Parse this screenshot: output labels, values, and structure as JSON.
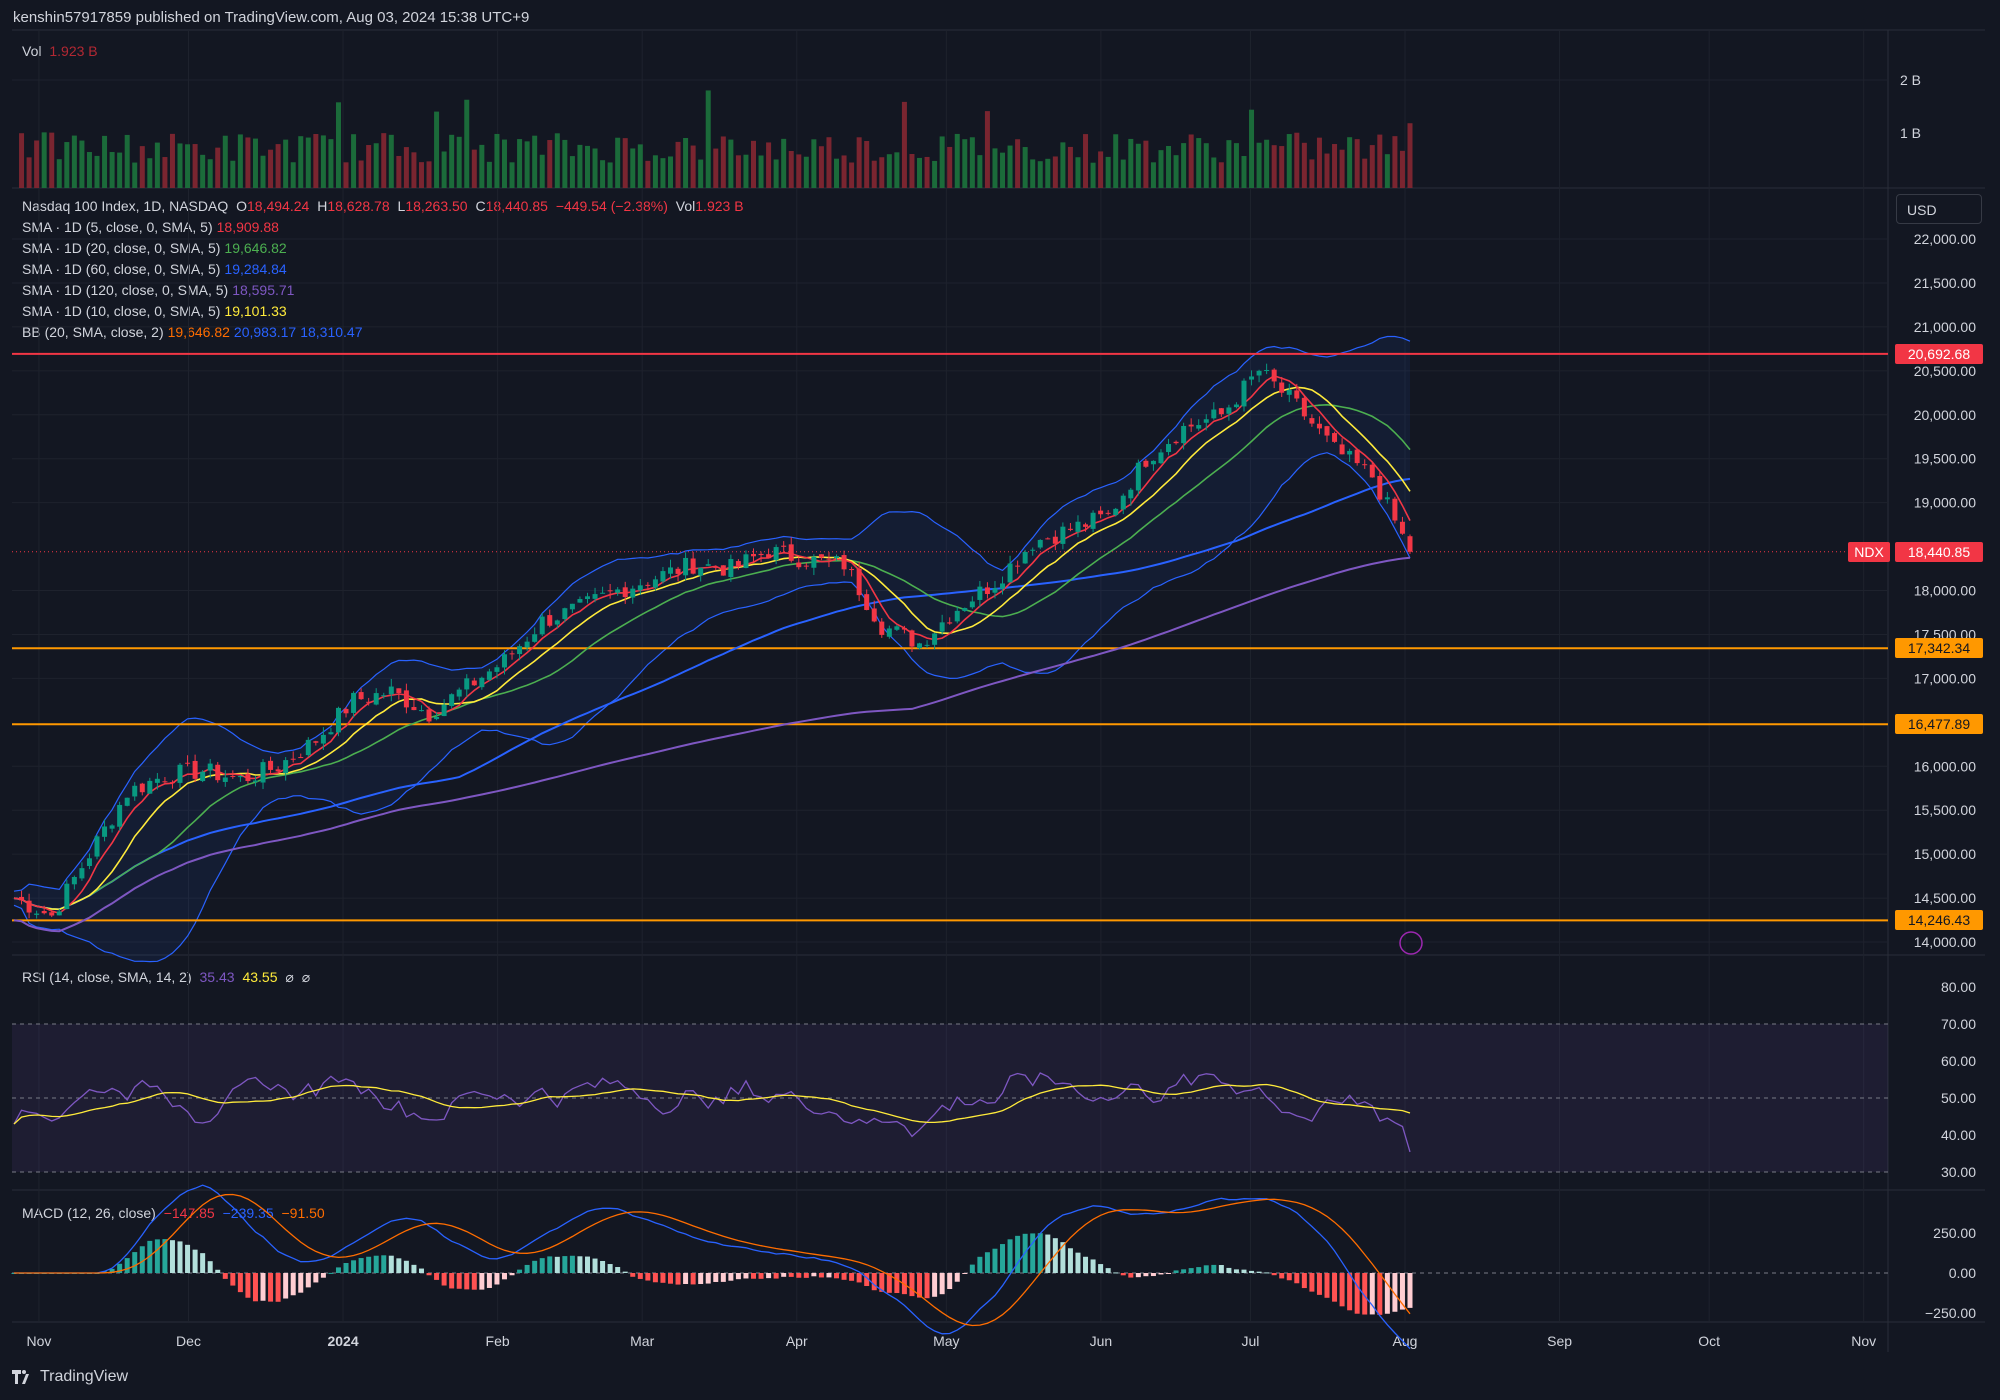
{
  "header": {
    "text": "kenshin57917859 published on TradingView.com, Aug 03, 2024 15:38 UTC+9"
  },
  "currency": "USD",
  "symbol_tag": "NDX",
  "volume_pane": {
    "label": "Vol",
    "value": "1.923 B",
    "axis": [
      "2 B",
      "1 B"
    ]
  },
  "main_legend": {
    "title": "Nasdaq 100 Index, 1D, NASDAQ",
    "o_label": "O",
    "o": "18,494.24",
    "h_label": "H",
    "h": "18,628.78",
    "l_label": "L",
    "l": "18,263.50",
    "c_label": "C",
    "c": "18,440.85",
    "change": "−449.54 (−2.38%)",
    "vol_label": "Vol",
    "vol": "1.923 B",
    "sma5_label": "SMA · 1D (5, close, 0, SMA, 5)",
    "sma5": "18,909.88",
    "sma20_label": "SMA · 1D (20, close, 0, SMA, 5)",
    "sma20": "19,646.82",
    "sma60_label": "SMA · 1D (60, close, 0, SMA, 5)",
    "sma60": "19,284.84",
    "sma120_label": "SMA · 1D (120, close, 0, SMA, 5)",
    "sma120": "18,595.71",
    "sma10_label": "SMA · 1D (10, close, 0, SMA, 5)",
    "sma10": "19,101.33",
    "bb_label": "BB (20, SMA, close, 2)",
    "bb_mid": "19,646.82",
    "bb_up": "20,983.17",
    "bb_low": "18,310.47"
  },
  "price_axis": [
    "22,000.00",
    "21,500.00",
    "21,000.00",
    "20,500.00",
    "20,000.00",
    "19,500.00",
    "19,000.00",
    "18,000.00",
    "17,500.00",
    "17,000.00",
    "16,000.00",
    "15,500.00",
    "15,000.00",
    "14,500.00",
    "14,000.00"
  ],
  "horizontal_lines": [
    {
      "label": "20,692.68",
      "value": 20692.68,
      "color": "#f23645"
    },
    {
      "label": "17,342.34",
      "value": 17342.34,
      "color": "#ff9800"
    },
    {
      "label": "16,477.89",
      "value": 16477.89,
      "color": "#ff9800"
    },
    {
      "label": "14,246.43",
      "value": 14246.43,
      "color": "#ff9800"
    }
  ],
  "last_price": {
    "label": "18,440.85",
    "value": 18440.85
  },
  "rsi_pane": {
    "label": "RSI (14, close, SMA, 14, 2)",
    "v1": "35.43",
    "v2": "43.55",
    "v3": "⌀",
    "v4": "⌀",
    "axis": [
      "80.00",
      "70.00",
      "60.00",
      "50.00",
      "40.00",
      "30.00"
    ]
  },
  "macd_pane": {
    "label": "MACD (12, 26, close)",
    "hist": "−147.85",
    "macd": "−239.35",
    "signal": "−91.50",
    "axis": [
      "250.00",
      "0.00",
      "−250.00"
    ]
  },
  "time_axis": [
    "Nov",
    "Dec",
    "2024",
    "Feb",
    "Mar",
    "Apr",
    "May",
    "Jun",
    "Jul",
    "Aug",
    "Sep",
    "Oct",
    "Nov"
  ],
  "footer": {
    "brand": "TradingView"
  },
  "chart_data": {
    "type": "candlestick",
    "title": "Nasdaq 100 Index, 1D, NASDAQ",
    "x_range": [
      "2023-10-27",
      "2024-08-02"
    ],
    "ylim": [
      13900,
      22300
    ],
    "weekly_close": [
      14500,
      14300,
      15000,
      15700,
      15900,
      15950,
      15850,
      16000,
      16300,
      16750,
      16850,
      16600,
      16900,
      17200,
      17650,
      17800,
      18000,
      18150,
      18300,
      18250,
      18450,
      18350,
      18300,
      17600,
      17400,
      17800,
      18100,
      18550,
      18700,
      18850,
      19500,
      19850,
      20000,
      20500,
      20100,
      19600,
      19300,
      18440.85
    ],
    "series": [
      {
        "name": "SMA 5",
        "color": "#f23645"
      },
      {
        "name": "SMA 10",
        "color": "#ffeb3b"
      },
      {
        "name": "SMA 20",
        "color": "#4caf50"
      },
      {
        "name": "SMA 60",
        "color": "#2962ff"
      },
      {
        "name": "SMA 120",
        "color": "#7e57c2"
      },
      {
        "name": "BB upper / lower",
        "color": "#2962ff"
      }
    ]
  }
}
